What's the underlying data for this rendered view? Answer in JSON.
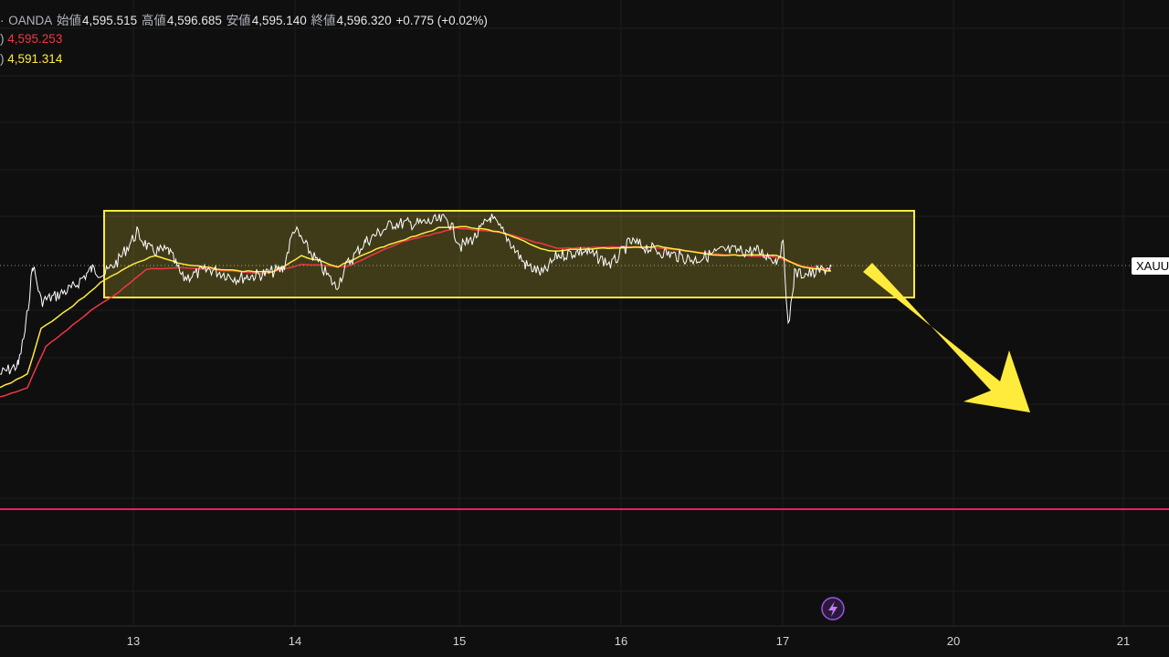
{
  "header": {
    "source": "OANDA",
    "open_label": "始値",
    "open": "4,595.515",
    "high_label": "高値",
    "high": "4,596.685",
    "low_label": "安値",
    "low": "4,595.140",
    "close_label": "終値",
    "close": "4,596.320",
    "change": "+0.775 (+0.02%)"
  },
  "legend": [
    {
      "suffix": ")",
      "value": "4,595.253"
    },
    {
      "suffix": ")",
      "value": "4,591.314"
    }
  ],
  "x_axis": {
    "labels": [
      "13",
      "14",
      "15",
      "16",
      "17",
      "20",
      "21"
    ]
  },
  "price_tag": "XAUU"
}
